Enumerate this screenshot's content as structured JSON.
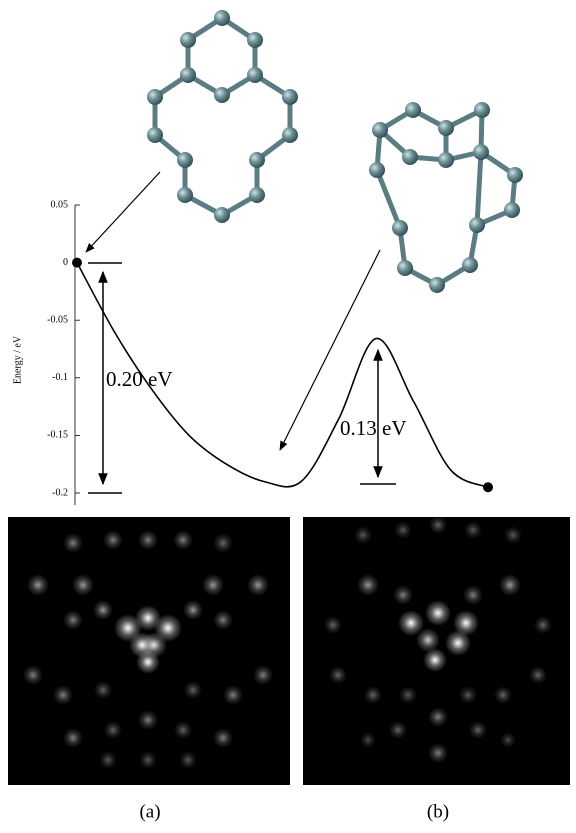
{
  "chart_data": {
    "type": "line",
    "ylabel": "Energy / eV",
    "categories": [
      null,
      null,
      null,
      null,
      null,
      null,
      null,
      null,
      null,
      null,
      null,
      null
    ],
    "values": [
      0,
      -0.06,
      -0.11,
      -0.15,
      -0.175,
      -0.19,
      -0.19,
      -0.136,
      -0.066,
      -0.12,
      -0.18,
      -0.195
    ],
    "color": "#000000",
    "ylim": [
      -0.2,
      0.05
    ],
    "yticks": [
      0.05,
      0,
      -0.05,
      -0.1,
      -0.15,
      -0.2
    ],
    "annotations": [
      "0.20 eV",
      "0.13 eV"
    ]
  },
  "captions": [
    "(a)",
    "(b)"
  ]
}
